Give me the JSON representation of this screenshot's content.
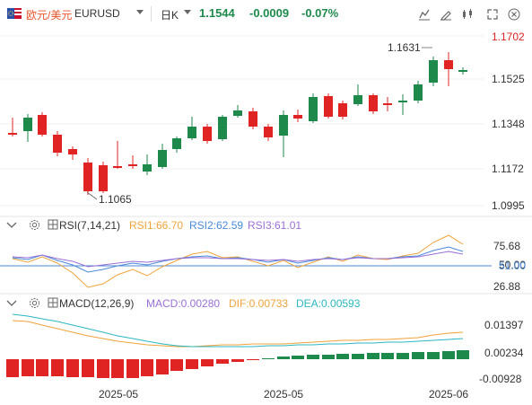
{
  "header": {
    "pair_zh": "欧元/美元",
    "pair_en": "EURUSD",
    "period": "日K",
    "last": "1.1544",
    "change": "-0.0009",
    "change_pct": "-0.07%"
  },
  "price_axis": [
    "1.1702",
    "1.1525",
    "1.1348",
    "1.1172",
    "1.0995"
  ],
  "price_labels": {
    "high": "1.1631",
    "low": "1.1065"
  },
  "rsi": {
    "name": "RSI(7,14,21)",
    "rsi1": "RSI1:66.70",
    "rsi2": "RSI2:62.59",
    "rsi3": "RSI3:61.01",
    "axis": [
      "75.68",
      "50.00",
      "26.88"
    ],
    "ref_line": "51.00"
  },
  "macd": {
    "name": "MACD(12,26,9)",
    "macd": "MACD:0.00280",
    "dif": "DIF:0.00733",
    "dea": "DEA:0.00593",
    "axis": [
      "0.01397",
      "0.00234",
      "-0.00928"
    ]
  },
  "time_axis": [
    "2025-05",
    "2025-05",
    "2025-06"
  ],
  "colors": {
    "up": "#1d8a4b",
    "down": "#e02424",
    "accent": "#e8542c"
  }
}
